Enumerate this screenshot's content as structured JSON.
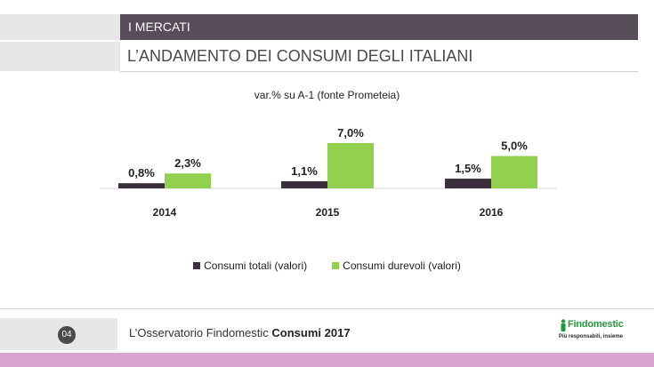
{
  "header": {
    "section": "I MERCATI",
    "title": "L’ANDAMENTO DEI CONSUMI DEGLI ITALIANI"
  },
  "chart_data": {
    "type": "bar",
    "title": "var.% su A-1 (fonte Prometeia)",
    "categories": [
      "2014",
      "2015",
      "2016"
    ],
    "series": [
      {
        "name": "Consumi totali (valori)",
        "values": [
          0.8,
          1.1,
          1.5
        ],
        "labels": [
          "0,8%",
          "1,1%",
          "1,5%"
        ],
        "color": "#3b2f3d"
      },
      {
        "name": "Consumi durevoli (valori)",
        "values": [
          2.3,
          7.0,
          5.0
        ],
        "labels": [
          "2,3%",
          "7,0%",
          "5,0%"
        ],
        "color": "#92d050"
      }
    ],
    "ylim": [
      0,
      7.0
    ],
    "grid": false,
    "legend": "bottom"
  },
  "footer": {
    "page_number": "04",
    "report_prefix": "L’Osservatorio Findomestic ",
    "report_bold": "Consumi 2017",
    "logo_name": "Findomestic",
    "logo_tagline": "Più responsabili, insieme"
  },
  "colors": {
    "header_bar": "#584b5a",
    "accent_strip": "#d7a3cf"
  }
}
